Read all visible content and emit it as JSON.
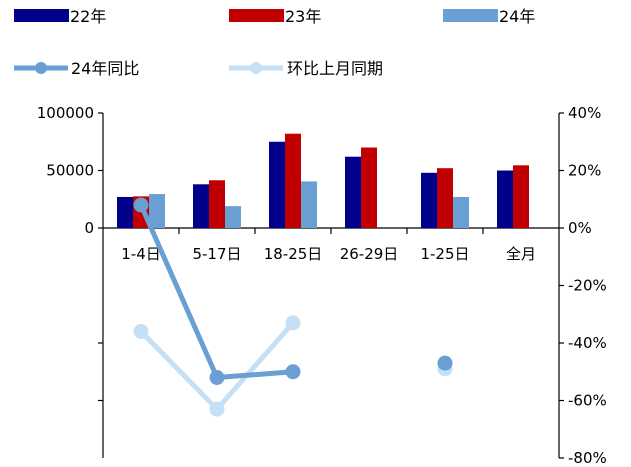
{
  "chart_data": {
    "type": "bar",
    "categories": [
      "1-4日",
      "5-17日",
      "18-25日",
      "26-29日",
      "1-25日",
      "全月"
    ],
    "series": [
      {
        "name": "22年",
        "kind": "bar",
        "axis": "left",
        "color": "#00008b",
        "values": [
          27000,
          38000,
          75000,
          62000,
          48000,
          50000
        ]
      },
      {
        "name": "23年",
        "kind": "bar",
        "axis": "left",
        "color": "#c00000",
        "values": [
          27500,
          41500,
          82000,
          70000,
          52000,
          54500
        ]
      },
      {
        "name": "24年",
        "kind": "bar",
        "axis": "left",
        "color": "#6a9fd4",
        "values": [
          29500,
          19000,
          40500,
          null,
          27000,
          null
        ]
      },
      {
        "name": "24年同比",
        "kind": "line",
        "axis": "right",
        "color": "#6a9fd4",
        "values": [
          8,
          -52,
          -50,
          null,
          -47,
          null
        ]
      },
      {
        "name": "环比上月同期",
        "kind": "line",
        "axis": "right",
        "color": "#c5e0f5",
        "values": [
          -36,
          -63,
          -33,
          null,
          -49,
          null
        ]
      }
    ],
    "left_axis": {
      "ylim": [
        0,
        100000
      ],
      "ticks": [
        "0",
        "50000",
        "100000"
      ]
    },
    "right_axis": {
      "ylim": [
        -80,
        40
      ],
      "ticks": [
        "40%",
        "20%",
        "0%",
        "-20%",
        "-40%",
        "-60%",
        "-80%"
      ]
    },
    "legend": {
      "placement": "top"
    },
    "grid": false
  }
}
